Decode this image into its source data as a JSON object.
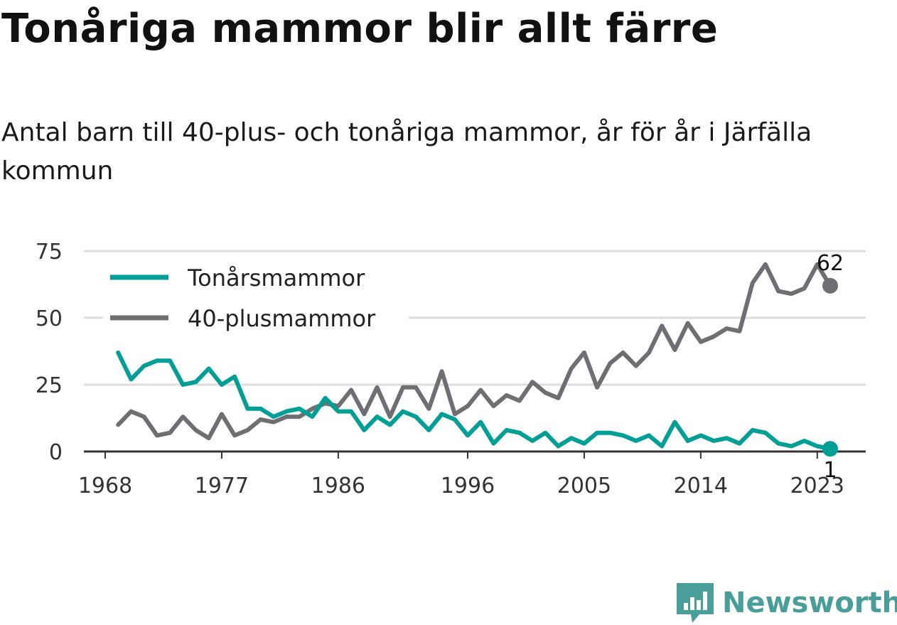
{
  "title": "Tonåriga mammor blir allt färre",
  "subtitle": "Antal barn till 40-plus- och tonåriga mammor, år för år i Järfälla kommun",
  "brand": {
    "name": "Newsworthy",
    "color": "#4a9e9a",
    "icon": "newsworthy-logo-icon"
  },
  "chart_data": {
    "type": "line",
    "x_ticks": [
      "1968",
      "1977",
      "1986",
      "1996",
      "2005",
      "2014",
      "2023"
    ],
    "y_ticks": [
      "0",
      "25",
      "50",
      "75"
    ],
    "ylim": [
      0,
      75
    ],
    "xlim": [
      1968,
      2026
    ],
    "grid": true,
    "legend_position": "top-left",
    "x": [
      1969,
      1970,
      1971,
      1972,
      1973,
      1974,
      1975,
      1976,
      1977,
      1978,
      1979,
      1980,
      1981,
      1982,
      1983,
      1984,
      1985,
      1986,
      1987,
      1988,
      1989,
      1990,
      1991,
      1992,
      1993,
      1994,
      1995,
      1996,
      1997,
      1998,
      1999,
      2000,
      2001,
      2002,
      2003,
      2004,
      2005,
      2006,
      2007,
      2008,
      2009,
      2010,
      2011,
      2012,
      2013,
      2014,
      2015,
      2016,
      2017,
      2018,
      2019,
      2020,
      2021,
      2022,
      2023,
      2024
    ],
    "series": [
      {
        "name": "Tonårsmammor",
        "color": "#009f96",
        "end_label": "1",
        "values": [
          37,
          27,
          32,
          34,
          34,
          25,
          26,
          31,
          25,
          28,
          16,
          16,
          13,
          15,
          16,
          13,
          20,
          15,
          15,
          8,
          13,
          10,
          15,
          13,
          8,
          14,
          12,
          6,
          11,
          3,
          8,
          7,
          4,
          7,
          2,
          5,
          3,
          7,
          7,
          6,
          4,
          6,
          2,
          11,
          4,
          6,
          4,
          5,
          3,
          8,
          7,
          3,
          2,
          4,
          2,
          1
        ]
      },
      {
        "name": "40-plusmammor",
        "color": "#6f6e73",
        "end_label": "62",
        "values": [
          10,
          15,
          13,
          6,
          7,
          13,
          8,
          5,
          14,
          6,
          8,
          12,
          11,
          13,
          13,
          16,
          18,
          17,
          23,
          14,
          24,
          13,
          24,
          24,
          16,
          30,
          14,
          17,
          23,
          17,
          21,
          19,
          26,
          22,
          20,
          31,
          37,
          24,
          33,
          37,
          32,
          37,
          47,
          38,
          48,
          41,
          43,
          46,
          45,
          63,
          70,
          60,
          59,
          61,
          70,
          62
        ]
      }
    ]
  }
}
